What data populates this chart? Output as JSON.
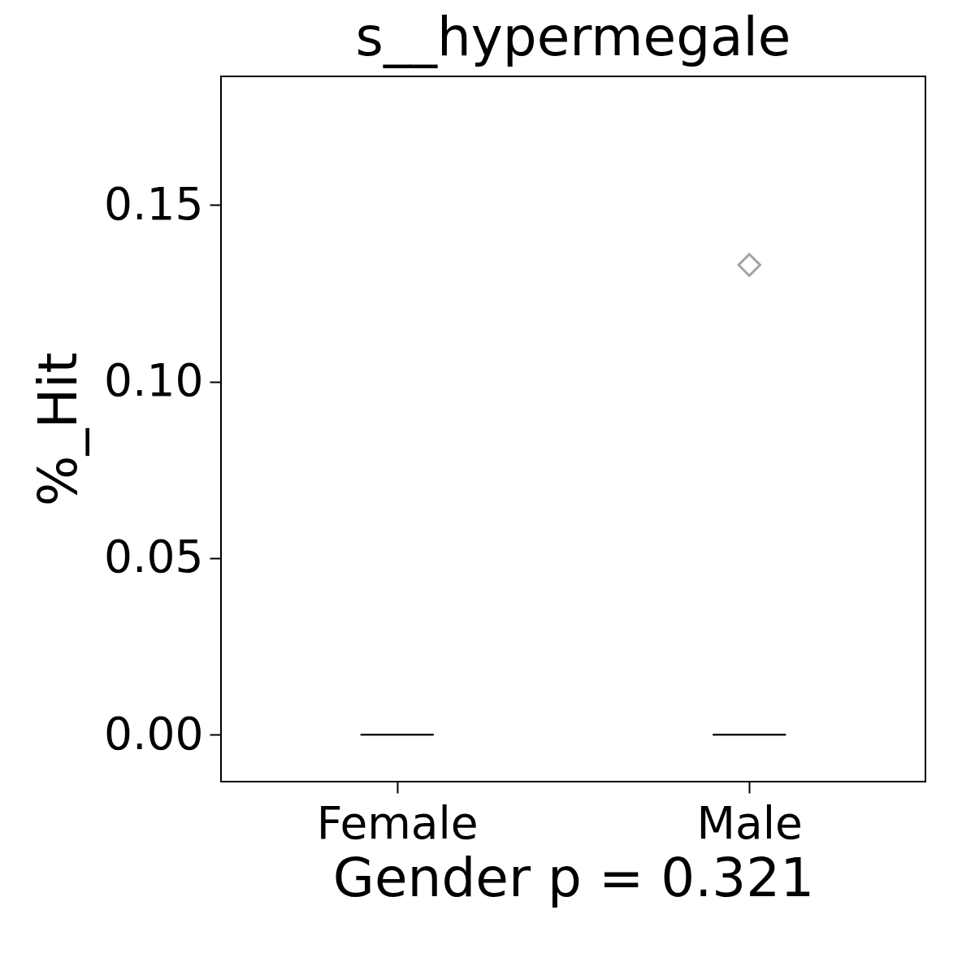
{
  "chart_data": {
    "type": "box",
    "title": "s__hypermegale",
    "xlabel": "Gender p = 0.321",
    "ylabel": "%_Hit",
    "categories": [
      "Female",
      "Male"
    ],
    "boxes": [
      {
        "low": 0,
        "q1": 0,
        "median": 0,
        "q3": 0,
        "high": 0
      },
      {
        "low": 0,
        "q1": 0,
        "median": 0,
        "q3": 0,
        "high": 0,
        "outliers": [
          0.133
        ]
      }
    ],
    "ylim": [
      -0.0133,
      0.1864
    ],
    "yticks": [
      {
        "value": 0,
        "label": "0.00"
      },
      {
        "value": 0.05,
        "label": "0.05"
      },
      {
        "value": 0.1,
        "label": "0.10"
      },
      {
        "value": 0.15,
        "label": "0.15"
      }
    ],
    "grid": false,
    "marker": "diamond"
  }
}
